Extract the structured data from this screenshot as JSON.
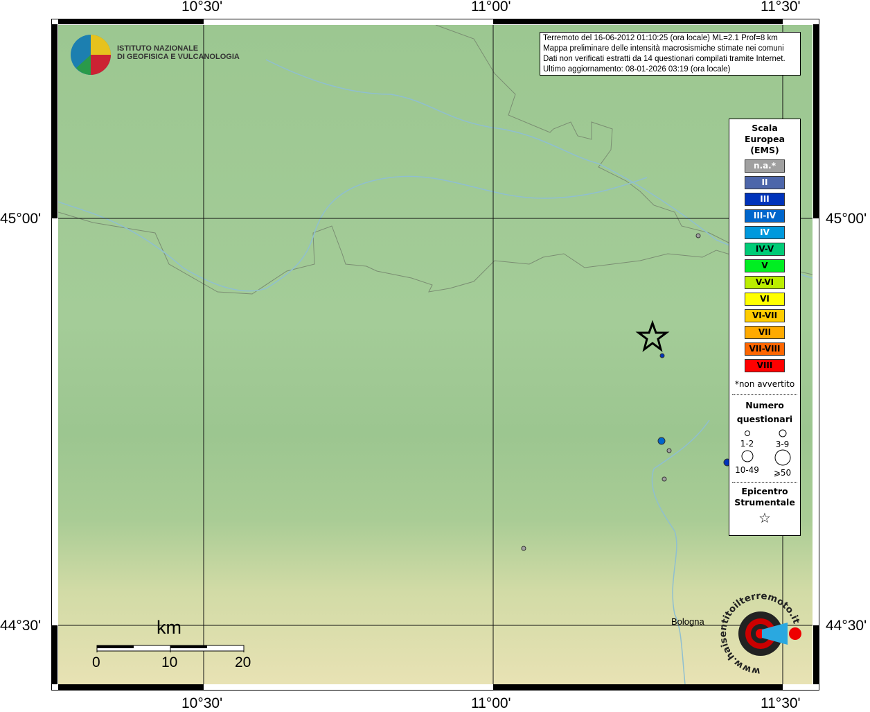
{
  "axes": {
    "lon_ticks": [
      "10°30'",
      "11°00'",
      "11°30'"
    ],
    "lat_ticks": [
      "45°00'",
      "44°30'"
    ]
  },
  "info": {
    "lines": [
      "Terremoto del 16-06-2012 01:10:25 (ora locale) ML=2.1 Prof=8 km",
      "Mappa preliminare delle intensità macrosismiche stimate nei comuni",
      "Dati non verificati estratti da 14 questionari compilati tramite Internet.",
      "Ultimo aggiornamento: 08-01-2026 03:19 (ora locale)"
    ]
  },
  "logo": {
    "line1": "ISTITUTO NAZIONALE",
    "line2": "DI GEOFISICA E VULCANOLOGIA"
  },
  "legend": {
    "title": [
      "Scala",
      "Europea",
      "(EMS)"
    ],
    "scale": [
      {
        "label": "n.a.*",
        "color": "#a0a0a0",
        "text": "#fff"
      },
      {
        "label": "II",
        "color": "#4d66aa",
        "text": "#fff"
      },
      {
        "label": "III",
        "color": "#0033bb",
        "text": "#fff"
      },
      {
        "label": "III-IV",
        "color": "#0066cc",
        "text": "#fff"
      },
      {
        "label": "IV",
        "color": "#0099dd",
        "text": "#fff"
      },
      {
        "label": "IV-V",
        "color": "#00cc77",
        "text": "#000"
      },
      {
        "label": "V",
        "color": "#00ee22",
        "text": "#000"
      },
      {
        "label": "V-VI",
        "color": "#bbee00",
        "text": "#000"
      },
      {
        "label": "VI",
        "color": "#ffff00",
        "text": "#000"
      },
      {
        "label": "VI-VII",
        "color": "#ffcc00",
        "text": "#000"
      },
      {
        "label": "VII",
        "color": "#ffaa00",
        "text": "#000"
      },
      {
        "label": "VII-VIII",
        "color": "#ff6600",
        "text": "#000"
      },
      {
        "label": "VIII",
        "color": "#ff0000",
        "text": "#000"
      }
    ],
    "note": "*non avvertito",
    "count_title": [
      "Numero",
      "questionari"
    ],
    "counts": [
      "1-2",
      "3-9",
      "10-49",
      "⩾50"
    ],
    "epi_title": [
      "Epicentro",
      "Strumentale"
    ]
  },
  "place": "Bologna",
  "scalebar": {
    "unit": "km",
    "labels": [
      "0",
      "10",
      "20"
    ]
  },
  "brand": "www.haisentitoilterremoto.it",
  "points": [
    {
      "intensity": "n.a.*"
    },
    {
      "intensity": "n.a.*"
    },
    {
      "intensity": "n.a.*"
    },
    {
      "intensity": "n.a.*"
    },
    {
      "intensity": "III"
    },
    {
      "intensity": "III-IV"
    },
    {
      "intensity": "III"
    }
  ]
}
